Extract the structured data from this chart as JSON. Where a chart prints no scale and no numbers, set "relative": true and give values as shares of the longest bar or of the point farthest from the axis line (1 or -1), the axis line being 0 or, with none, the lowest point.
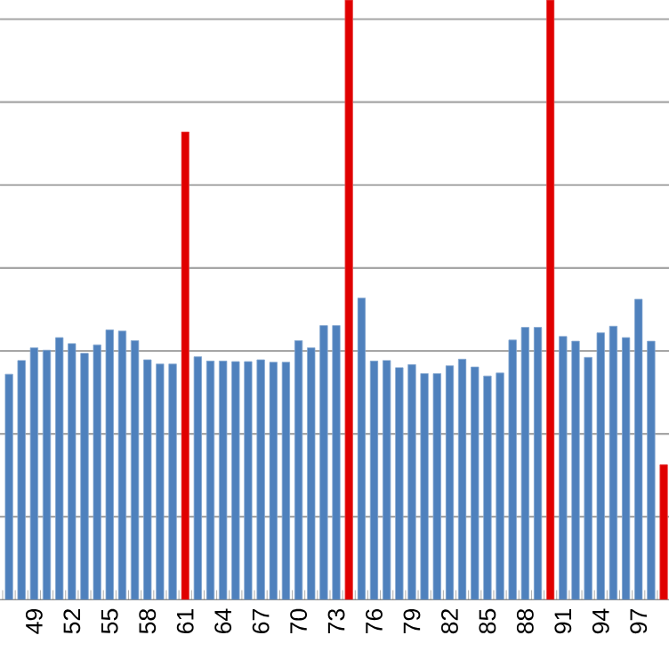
{
  "chart_data": {
    "type": "bar",
    "relative": true,
    "grid": "y",
    "categories": [
      null,
      null,
      "49",
      null,
      null,
      "52",
      null,
      null,
      "55",
      null,
      null,
      "58",
      null,
      null,
      "61",
      null,
      null,
      "64",
      null,
      null,
      "67",
      null,
      null,
      "70",
      null,
      null,
      "73",
      null,
      null,
      "76",
      null,
      null,
      "79",
      null,
      null,
      "82",
      null,
      null,
      "85",
      null,
      null,
      "88",
      null,
      null,
      "91",
      null,
      null,
      "94",
      null,
      null,
      "97",
      null,
      null
    ],
    "values": [
      0.376,
      0.399,
      0.42,
      0.416,
      0.437,
      0.427,
      0.411,
      0.425,
      0.45,
      0.448,
      0.432,
      0.4,
      0.393,
      0.393,
      0.78,
      0.405,
      0.398,
      0.398,
      0.397,
      0.397,
      0.4,
      0.396,
      0.396,
      0.432,
      0.42,
      0.457,
      0.457,
      1,
      0.503,
      0.398,
      0.399,
      0.387,
      0.392,
      0.377,
      0.377,
      0.39,
      0.401,
      0.388,
      0.373,
      0.378,
      0.433,
      0.454,
      0.454,
      1,
      0.439,
      0.431,
      0.404,
      0.445,
      0.456,
      0.437,
      0.501,
      0.431,
      0.225
    ],
    "colors": [
      "#4f81bd",
      "#4f81bd",
      "#4f81bd",
      "#4f81bd",
      "#4f81bd",
      "#4f81bd",
      "#4f81bd",
      "#4f81bd",
      "#4f81bd",
      "#4f81bd",
      "#4f81bd",
      "#4f81bd",
      "#4f81bd",
      "#4f81bd",
      "#e00000",
      "#4f81bd",
      "#4f81bd",
      "#4f81bd",
      "#4f81bd",
      "#4f81bd",
      "#4f81bd",
      "#4f81bd",
      "#4f81bd",
      "#4f81bd",
      "#4f81bd",
      "#4f81bd",
      "#4f81bd",
      "#e00000",
      "#4f81bd",
      "#4f81bd",
      "#4f81bd",
      "#4f81bd",
      "#4f81bd",
      "#4f81bd",
      "#4f81bd",
      "#4f81bd",
      "#4f81bd",
      "#4f81bd",
      "#4f81bd",
      "#4f81bd",
      "#4f81bd",
      "#4f81bd",
      "#4f81bd",
      "#e00000",
      "#4f81bd",
      "#4f81bd",
      "#4f81bd",
      "#4f81bd",
      "#4f81bd",
      "#4f81bd",
      "#4f81bd",
      "#4f81bd",
      "#e00000"
    ]
  }
}
